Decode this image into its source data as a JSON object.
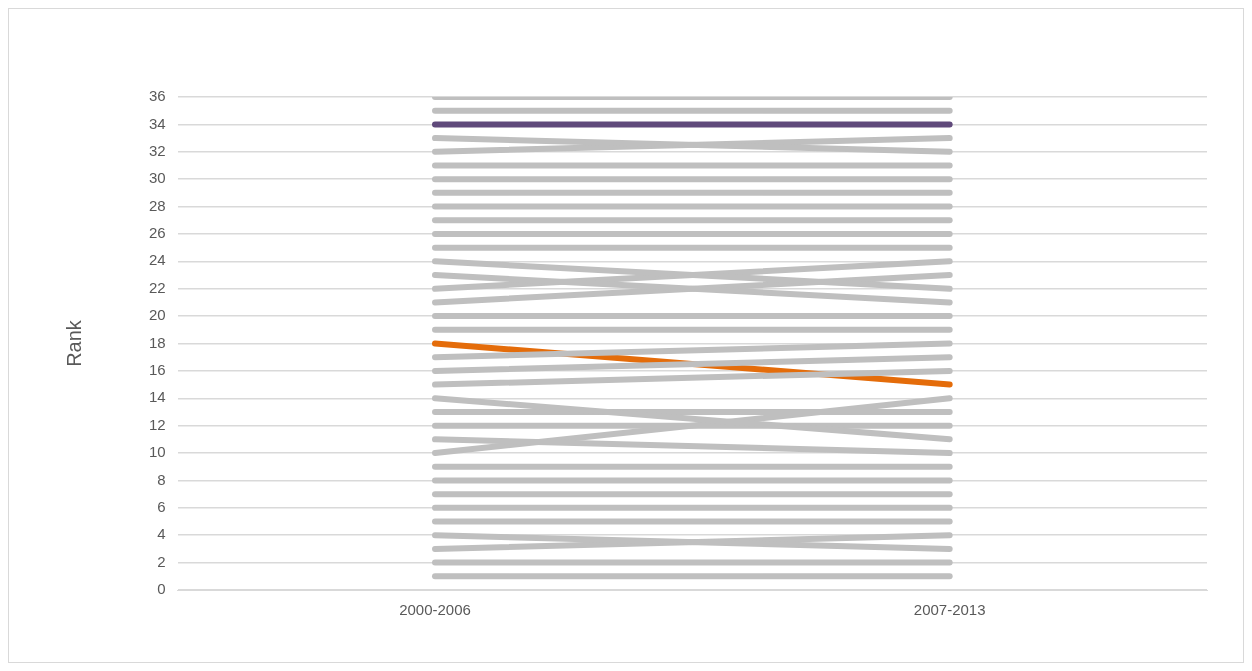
{
  "chart_data": {
    "type": "line",
    "ylabel": "Rank",
    "categories": [
      "2000-2006",
      "2007-2013"
    ],
    "ylim": [
      0,
      36
    ],
    "yticks": [
      0,
      2,
      4,
      6,
      8,
      10,
      12,
      14,
      16,
      18,
      20,
      22,
      24,
      26,
      28,
      30,
      32,
      34,
      36
    ],
    "grid": "y",
    "legend": false,
    "marker": "none",
    "line_style": "solid",
    "series": [
      {
        "color": "#bfbfbf",
        "values": [
          36,
          36
        ]
      },
      {
        "color": "#bfbfbf",
        "values": [
          35,
          35
        ]
      },
      {
        "color": "#bfbfbf",
        "values": [
          33,
          32
        ]
      },
      {
        "color": "#bfbfbf",
        "values": [
          32,
          33
        ]
      },
      {
        "color": "#bfbfbf",
        "values": [
          31,
          31
        ]
      },
      {
        "color": "#bfbfbf",
        "values": [
          30,
          30
        ]
      },
      {
        "color": "#bfbfbf",
        "values": [
          29,
          29
        ]
      },
      {
        "color": "#bfbfbf",
        "values": [
          28,
          28
        ]
      },
      {
        "color": "#bfbfbf",
        "values": [
          27,
          27
        ]
      },
      {
        "color": "#bfbfbf",
        "values": [
          26,
          26
        ]
      },
      {
        "color": "#bfbfbf",
        "values": [
          25,
          25
        ]
      },
      {
        "color": "#bfbfbf",
        "values": [
          24,
          22
        ]
      },
      {
        "color": "#bfbfbf",
        "values": [
          23,
          21
        ]
      },
      {
        "color": "#bfbfbf",
        "values": [
          22,
          24
        ]
      },
      {
        "color": "#bfbfbf",
        "values": [
          21,
          23
        ]
      },
      {
        "color": "#bfbfbf",
        "values": [
          20,
          20
        ]
      },
      {
        "color": "#bfbfbf",
        "values": [
          19,
          19
        ]
      },
      {
        "color": "#bfbfbf",
        "values": [
          17,
          18
        ]
      },
      {
        "color": "#bfbfbf",
        "values": [
          16,
          17
        ]
      },
      {
        "color": "#bfbfbf",
        "values": [
          15,
          16
        ]
      },
      {
        "color": "#bfbfbf",
        "values": [
          14,
          11
        ]
      },
      {
        "color": "#bfbfbf",
        "values": [
          13,
          13
        ]
      },
      {
        "color": "#bfbfbf",
        "values": [
          12,
          12
        ]
      },
      {
        "color": "#bfbfbf",
        "values": [
          11,
          10
        ]
      },
      {
        "color": "#bfbfbf",
        "values": [
          10,
          14
        ]
      },
      {
        "color": "#bfbfbf",
        "values": [
          9,
          9
        ]
      },
      {
        "color": "#bfbfbf",
        "values": [
          8,
          8
        ]
      },
      {
        "color": "#bfbfbf",
        "values": [
          7,
          7
        ]
      },
      {
        "color": "#bfbfbf",
        "values": [
          6,
          6
        ]
      },
      {
        "color": "#bfbfbf",
        "values": [
          5,
          5
        ]
      },
      {
        "color": "#bfbfbf",
        "values": [
          4,
          3
        ]
      },
      {
        "color": "#bfbfbf",
        "values": [
          3,
          4
        ]
      },
      {
        "color": "#bfbfbf",
        "values": [
          2,
          2
        ]
      },
      {
        "color": "#bfbfbf",
        "values": [
          1,
          1
        ]
      },
      {
        "color": "#604a7b",
        "values": [
          34,
          34
        ]
      },
      {
        "color": "#e46c0a",
        "values": [
          18,
          15
        ]
      }
    ]
  }
}
